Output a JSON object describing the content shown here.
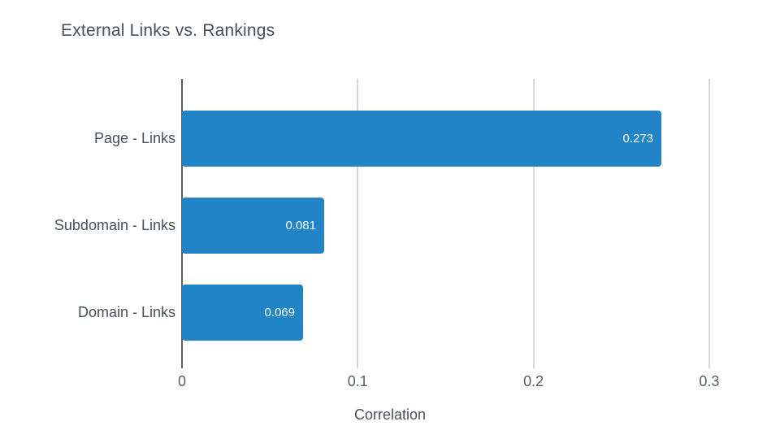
{
  "chart_data": {
    "type": "bar",
    "orientation": "horizontal",
    "title": "External Links vs. Rankings",
    "categories": [
      "Page - Links",
      "Subdomain - Links",
      "Domain - Links"
    ],
    "values": [
      0.273,
      0.081,
      0.069
    ],
    "value_labels": [
      "0.273",
      "0.081",
      "0.069"
    ],
    "xlabel": "Correlation",
    "ylabel": "",
    "xtick_labels": [
      "0",
      "0.1",
      "0.2",
      "0.3"
    ],
    "xtick_values": [
      0,
      0.1,
      0.2,
      0.3
    ],
    "xlim": [
      0,
      0.3264
    ],
    "grid": "vertical",
    "legend": "none",
    "colors": {
      "bar": "#2184c6",
      "value_text": "#ffffff",
      "gridline": "#d8d8d8",
      "zero_axis": "#5c6166",
      "text": "#47505a",
      "tick_text": "#555c63",
      "background": "#ffffff"
    }
  }
}
